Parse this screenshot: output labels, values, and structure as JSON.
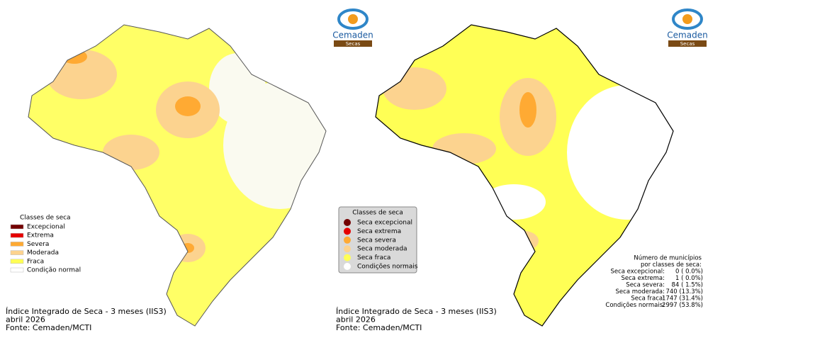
{
  "logos": [
    {
      "name": "Cemaden",
      "sub": "Secas"
    },
    {
      "name": "Cemaden",
      "sub": "Secas"
    }
  ],
  "left": {
    "legend": {
      "title": "Classes de seca",
      "items": [
        {
          "label": "Excepcional",
          "color": "#730000"
        },
        {
          "label": "Extrema",
          "color": "#e60000"
        },
        {
          "label": "Severa",
          "color": "#ffaa33"
        },
        {
          "label": "Moderada",
          "color": "#fcd38f"
        },
        {
          "label": "Fraca",
          "color": "#ffff55"
        },
        {
          "label": "Condição normal",
          "color": "#ffffff"
        }
      ]
    },
    "caption": [
      "Índice Integrado de Seca - 3 meses (IIS3)",
      "abril 2026",
      "Fonte: Cemaden/MCTI"
    ]
  },
  "right": {
    "legend": {
      "title": "Classes de seca",
      "items": [
        {
          "label": "Seca excepcional",
          "color": "#730000"
        },
        {
          "label": "Seca extrema",
          "color": "#e60000"
        },
        {
          "label": "Seca severa",
          "color": "#ffaa33"
        },
        {
          "label": "Seca moderada",
          "color": "#fcd38f"
        },
        {
          "label": "Seca fraca",
          "color": "#ffff55"
        },
        {
          "label": "Condições normais",
          "color": "#ffffff"
        }
      ]
    },
    "caption": [
      "Índice Integrado de Seca - 3 meses (IIS3)",
      "abril 2026",
      "Fonte: Cemaden/MCTI"
    ],
    "stats": {
      "title": [
        "Número de municípios",
        "por classes de seca:"
      ],
      "rows": [
        [
          "Seca excepcional:",
          "0 ( 0.0%)"
        ],
        [
          "Seca extrema:",
          "1 ( 0.0%)"
        ],
        [
          "Seca severa:",
          "84 ( 1.5%)"
        ],
        [
          "Seca moderada:",
          "740 (13.3%)"
        ],
        [
          "Seca fraca:",
          "1747 (31.4%)"
        ],
        [
          "Condições normais:",
          "2997 (53.8%)"
        ]
      ]
    }
  }
}
